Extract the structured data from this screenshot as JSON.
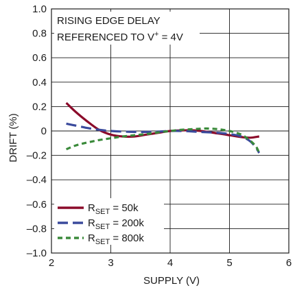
{
  "chart_data": {
    "type": "line",
    "xlabel": "SUPPLY (V)",
    "ylabel": "DRIFT (%)",
    "xlim": [
      2,
      6
    ],
    "ylim": [
      -1.0,
      1.0
    ],
    "x_ticks": [
      "2",
      "3",
      "4",
      "5",
      "6"
    ],
    "y_ticks": [
      "1.0",
      "0.8",
      "0.6",
      "0.4",
      "0.2",
      "0",
      "–0.2",
      "–0.4",
      "–0.6",
      "–0.8",
      "–1.0"
    ],
    "grid": true,
    "annotation": {
      "line1": "RISING EDGE DELAY",
      "line2_prefix": "REFERENCED TO V",
      "line2_sup": "+",
      "line2_suffix": " = 4V"
    },
    "legend_position": "bottom-left",
    "series": [
      {
        "name": "50k",
        "legend_main": "R",
        "legend_sub": "SET",
        "legend_tail": " = 50k",
        "color": "#8b0a2a",
        "dash": "solid",
        "points": [
          [
            2.25,
            0.23
          ],
          [
            2.4,
            0.16
          ],
          [
            2.6,
            0.08
          ],
          [
            2.8,
            0.01
          ],
          [
            3.0,
            -0.03
          ],
          [
            3.2,
            -0.045
          ],
          [
            3.4,
            -0.045
          ],
          [
            3.6,
            -0.03
          ],
          [
            3.8,
            -0.015
          ],
          [
            4.0,
            0.0
          ],
          [
            4.2,
            0.005
          ],
          [
            4.4,
            0.005
          ],
          [
            4.6,
            -0.005
          ],
          [
            4.8,
            -0.02
          ],
          [
            5.0,
            -0.035
          ],
          [
            5.2,
            -0.05
          ],
          [
            5.35,
            -0.055
          ],
          [
            5.5,
            -0.045
          ]
        ]
      },
      {
        "name": "200k",
        "legend_main": "R",
        "legend_sub": "SET",
        "legend_tail": " = 200k",
        "color": "#3a4a9c",
        "dash": "long-dash",
        "points": [
          [
            2.25,
            0.06
          ],
          [
            2.4,
            0.045
          ],
          [
            2.6,
            0.025
          ],
          [
            2.8,
            0.01
          ],
          [
            3.0,
            0.0
          ],
          [
            3.2,
            -0.005
          ],
          [
            3.4,
            -0.008
          ],
          [
            3.6,
            -0.008
          ],
          [
            3.8,
            -0.005
          ],
          [
            4.0,
            0.0
          ],
          [
            4.2,
            0.0
          ],
          [
            4.4,
            -0.005
          ],
          [
            4.6,
            -0.01
          ],
          [
            4.8,
            -0.015
          ],
          [
            5.0,
            -0.025
          ],
          [
            5.2,
            -0.045
          ],
          [
            5.35,
            -0.085
          ],
          [
            5.45,
            -0.14
          ],
          [
            5.5,
            -0.18
          ]
        ]
      },
      {
        "name": "800k",
        "legend_main": "R",
        "legend_sub": "SET",
        "legend_tail": " = 800k",
        "color": "#3a8a3a",
        "dash": "short-dash",
        "points": [
          [
            2.25,
            -0.15
          ],
          [
            2.4,
            -0.12
          ],
          [
            2.6,
            -0.095
          ],
          [
            2.8,
            -0.075
          ],
          [
            3.0,
            -0.06
          ],
          [
            3.2,
            -0.045
          ],
          [
            3.4,
            -0.035
          ],
          [
            3.6,
            -0.025
          ],
          [
            3.8,
            -0.012
          ],
          [
            4.0,
            0.0
          ],
          [
            4.2,
            0.01
          ],
          [
            4.4,
            0.015
          ],
          [
            4.6,
            0.02
          ],
          [
            4.8,
            0.015
          ],
          [
            5.0,
            0.0
          ],
          [
            5.2,
            -0.03
          ],
          [
            5.35,
            -0.08
          ],
          [
            5.45,
            -0.13
          ],
          [
            5.5,
            -0.18
          ]
        ]
      }
    ]
  }
}
